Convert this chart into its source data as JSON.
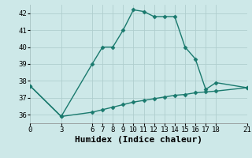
{
  "line1_x": [
    0,
    3,
    6,
    7,
    8,
    9,
    10,
    11,
    12,
    13,
    14,
    15,
    16,
    17,
    18,
    21
  ],
  "line1_y": [
    37.7,
    35.9,
    39.0,
    40.0,
    40.0,
    41.0,
    42.2,
    42.1,
    41.8,
    41.8,
    41.8,
    40.0,
    39.3,
    37.5,
    37.9,
    37.6
  ],
  "line2_x": [
    0,
    3,
    6,
    7,
    8,
    9,
    10,
    11,
    12,
    13,
    14,
    15,
    16,
    17,
    18,
    21
  ],
  "line2_y": [
    37.7,
    35.9,
    36.15,
    36.3,
    36.45,
    36.6,
    36.75,
    36.85,
    36.95,
    37.05,
    37.15,
    37.2,
    37.3,
    37.35,
    37.4,
    37.6
  ],
  "line_color": "#1a7a6e",
  "bg_color": "#cde8e8",
  "grid_color": "#b0cece",
  "xlabel": "Humidex (Indice chaleur)",
  "xlim": [
    0,
    21
  ],
  "ylim": [
    35.5,
    42.5
  ],
  "yticks": [
    36,
    37,
    38,
    39,
    40,
    41,
    42
  ],
  "xticks": [
    0,
    3,
    6,
    7,
    8,
    9,
    10,
    11,
    12,
    13,
    14,
    15,
    16,
    17,
    18,
    21
  ],
  "marker": "D",
  "markersize": 2.5,
  "linewidth": 1.0,
  "xlabel_fontsize": 8,
  "tick_fontsize": 6.5
}
